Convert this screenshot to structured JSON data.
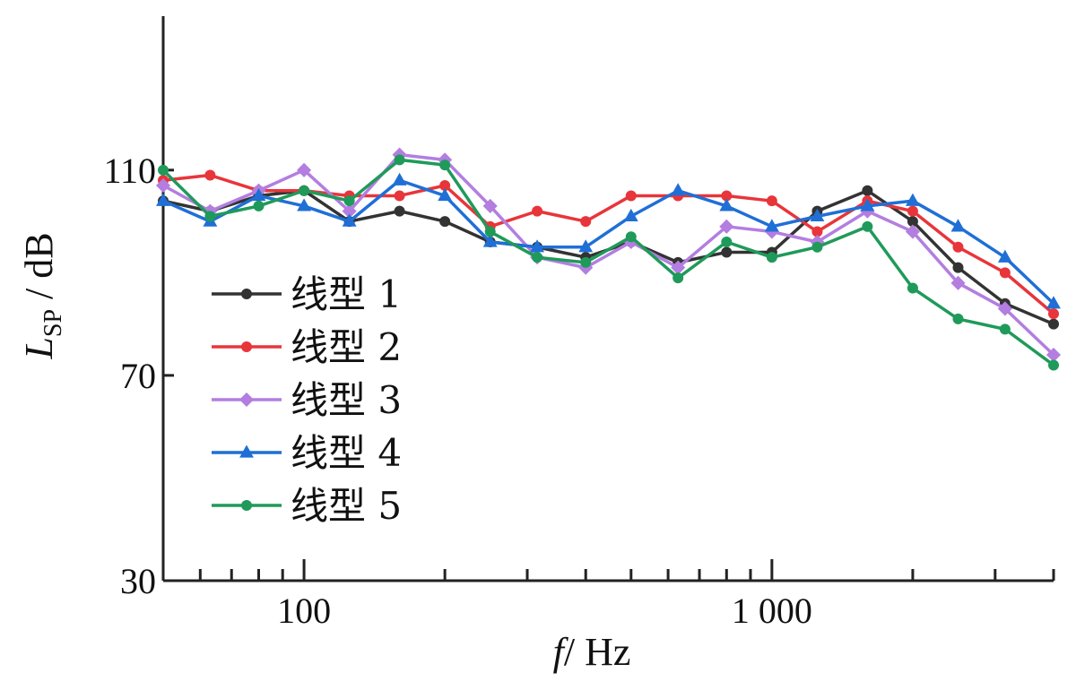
{
  "chart_data": {
    "type": "line",
    "x_scale": "log",
    "x": [
      50,
      63,
      80,
      100,
      125,
      160,
      200,
      250,
      315,
      400,
      500,
      630,
      800,
      1000,
      1250,
      1600,
      2000,
      2500,
      3150,
      4000
    ],
    "xlim": [
      50,
      4000
    ],
    "ylim": [
      30,
      140
    ],
    "x_tick_labels": [
      {
        "value": 100,
        "label": "100"
      },
      {
        "value": 1000,
        "label": "1 000"
      }
    ],
    "y_tick_labels": [
      {
        "value": 110,
        "label": "110"
      },
      {
        "value": 70,
        "label": "70"
      },
      {
        "value": 30,
        "label": "30"
      }
    ],
    "xlabel_italic": "f",
    "xlabel_unit": "/ Hz",
    "ylabel_main": "L",
    "ylabel_sub": "SP",
    "ylabel_unit": " / dB",
    "grid": false,
    "legend_position": "lower-left",
    "series": [
      {
        "name": "线型 1",
        "color": "#333333",
        "marker": "circle",
        "values": [
          104,
          102,
          105,
          106,
          100,
          102,
          100,
          96,
          95,
          93,
          96,
          92,
          94,
          94,
          102,
          106,
          100,
          91,
          84,
          80
        ]
      },
      {
        "name": "线型 2",
        "color": "#e8353a",
        "marker": "circle",
        "values": [
          108,
          109,
          106,
          106,
          105,
          105,
          107,
          99,
          102,
          100,
          105,
          105,
          105,
          104,
          98,
          104,
          102,
          95,
          90,
          82
        ]
      },
      {
        "name": "线型 3",
        "color": "#b37ee0",
        "marker": "diamond",
        "values": [
          107,
          102,
          106,
          110,
          102,
          113,
          112,
          103,
          93,
          91,
          96,
          91,
          99,
          98,
          96,
          102,
          98,
          88,
          83,
          74
        ]
      },
      {
        "name": "线型 4",
        "color": "#1f6fd6",
        "marker": "triangle",
        "values": [
          104,
          100,
          105,
          103,
          100,
          108,
          105,
          96,
          95,
          95,
          101,
          106,
          103,
          99,
          101,
          103,
          104,
          99,
          93,
          84
        ]
      },
      {
        "name": "线型 5",
        "color": "#1f9a5a",
        "marker": "circle",
        "values": [
          110,
          101,
          103,
          106,
          104,
          112,
          111,
          98,
          93,
          92,
          97,
          89,
          96,
          93,
          95,
          99,
          87,
          81,
          79,
          72
        ]
      }
    ]
  }
}
